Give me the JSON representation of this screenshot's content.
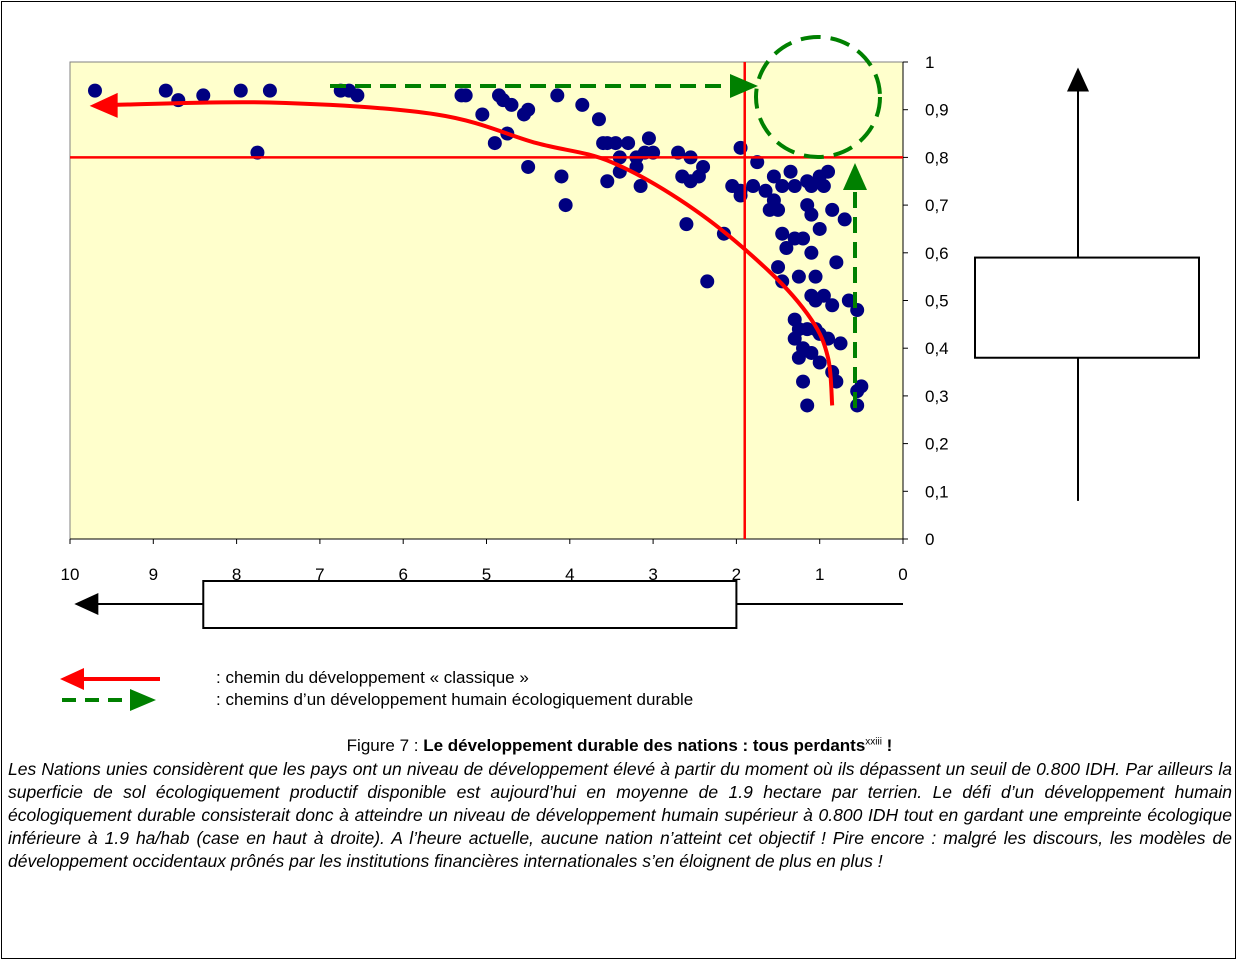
{
  "chart_data": {
    "type": "scatter",
    "x_ticks": [
      "10",
      "9",
      "8",
      "7",
      "6",
      "5",
      "4",
      "3",
      "2",
      "1",
      "0"
    ],
    "y_ticks": [
      "0",
      "0,1",
      "0,2",
      "0,3",
      "0,4",
      "0,5",
      "0,6",
      "0,7",
      "0,8",
      "0,9",
      "1"
    ],
    "xlim": [
      10,
      0
    ],
    "ylim": [
      0,
      1
    ],
    "x_reversed": true,
    "threshold_x": 1.9,
    "threshold_y": 0.8,
    "colors": {
      "plot_bg": "#ffffcc",
      "points": "#000080",
      "classic_path": "#ff0000",
      "sustainable_path": "#008000",
      "threshold": "#ff0000"
    },
    "points": [
      [
        9.7,
        0.94
      ],
      [
        8.85,
        0.94
      ],
      [
        8.7,
        0.92
      ],
      [
        8.4,
        0.93
      ],
      [
        7.95,
        0.94
      ],
      [
        7.6,
        0.94
      ],
      [
        7.75,
        0.81
      ],
      [
        6.75,
        0.94
      ],
      [
        6.55,
        0.93
      ],
      [
        6.65,
        0.94
      ],
      [
        5.3,
        0.93
      ],
      [
        5.25,
        0.93
      ],
      [
        5.05,
        0.89
      ],
      [
        4.85,
        0.93
      ],
      [
        4.8,
        0.92
      ],
      [
        4.7,
        0.91
      ],
      [
        4.55,
        0.89
      ],
      [
        4.5,
        0.9
      ],
      [
        4.75,
        0.85
      ],
      [
        4.9,
        0.83
      ],
      [
        4.5,
        0.78
      ],
      [
        4.15,
        0.93
      ],
      [
        3.85,
        0.91
      ],
      [
        3.65,
        0.88
      ],
      [
        3.55,
        0.83
      ],
      [
        3.45,
        0.83
      ],
      [
        3.6,
        0.83
      ],
      [
        3.4,
        0.8
      ],
      [
        3.3,
        0.83
      ],
      [
        3.2,
        0.8
      ],
      [
        3.1,
        0.81
      ],
      [
        3.05,
        0.84
      ],
      [
        3.0,
        0.81
      ],
      [
        3.4,
        0.77
      ],
      [
        3.2,
        0.78
      ],
      [
        3.55,
        0.75
      ],
      [
        3.15,
        0.74
      ],
      [
        4.1,
        0.76
      ],
      [
        4.05,
        0.7
      ],
      [
        2.7,
        0.81
      ],
      [
        2.55,
        0.8
      ],
      [
        2.65,
        0.76
      ],
      [
        2.55,
        0.75
      ],
      [
        2.4,
        0.78
      ],
      [
        2.45,
        0.76
      ],
      [
        2.6,
        0.66
      ],
      [
        2.35,
        0.54
      ],
      [
        2.15,
        0.64
      ],
      [
        1.95,
        0.82
      ],
      [
        2.05,
        0.74
      ],
      [
        1.95,
        0.73
      ],
      [
        1.95,
        0.72
      ],
      [
        1.8,
        0.74
      ],
      [
        1.75,
        0.79
      ],
      [
        1.65,
        0.73
      ],
      [
        1.55,
        0.76
      ],
      [
        1.55,
        0.71
      ],
      [
        1.45,
        0.74
      ],
      [
        1.6,
        0.69
      ],
      [
        1.35,
        0.77
      ],
      [
        1.3,
        0.74
      ],
      [
        1.5,
        0.69
      ],
      [
        1.15,
        0.75
      ],
      [
        1.1,
        0.74
      ],
      [
        0.95,
        0.74
      ],
      [
        1.0,
        0.76
      ],
      [
        0.9,
        0.77
      ],
      [
        1.15,
        0.7
      ],
      [
        1.1,
        0.68
      ],
      [
        1.0,
        0.65
      ],
      [
        0.85,
        0.69
      ],
      [
        0.7,
        0.67
      ],
      [
        1.45,
        0.64
      ],
      [
        1.4,
        0.61
      ],
      [
        1.3,
        0.63
      ],
      [
        1.2,
        0.63
      ],
      [
        1.1,
        0.6
      ],
      [
        1.5,
        0.57
      ],
      [
        1.45,
        0.54
      ],
      [
        1.25,
        0.55
      ],
      [
        1.05,
        0.55
      ],
      [
        0.8,
        0.58
      ],
      [
        1.1,
        0.51
      ],
      [
        1.05,
        0.5
      ],
      [
        0.95,
        0.51
      ],
      [
        0.85,
        0.49
      ],
      [
        0.65,
        0.5
      ],
      [
        1.3,
        0.46
      ],
      [
        1.25,
        0.44
      ],
      [
        1.3,
        0.42
      ],
      [
        1.15,
        0.44
      ],
      [
        1.05,
        0.44
      ],
      [
        1.0,
        0.43
      ],
      [
        0.9,
        0.42
      ],
      [
        0.75,
        0.41
      ],
      [
        1.2,
        0.4
      ],
      [
        1.1,
        0.39
      ],
      [
        1.25,
        0.38
      ],
      [
        1.0,
        0.37
      ],
      [
        0.85,
        0.35
      ],
      [
        0.55,
        0.48
      ],
      [
        0.5,
        0.32
      ],
      [
        0.8,
        0.33
      ],
      [
        1.2,
        0.33
      ],
      [
        1.15,
        0.28
      ],
      [
        0.55,
        0.28
      ],
      [
        0.55,
        0.31
      ]
    ],
    "classic_path": [
      [
        9.5,
        0.91
      ],
      [
        7.6,
        0.915
      ],
      [
        5.6,
        0.89
      ],
      [
        4.4,
        0.83
      ],
      [
        3.5,
        0.79
      ],
      [
        2.5,
        0.69
      ],
      [
        1.6,
        0.56
      ],
      [
        1.1,
        0.46
      ],
      [
        0.9,
        0.38
      ],
      [
        0.85,
        0.28
      ]
    ],
    "boxplot_y": {
      "whisker_low": 0.08,
      "q1": 0.38,
      "q3": 0.59,
      "whisker_high": 0.98
    },
    "boxplot_x": {
      "whisker_low": 0,
      "q1": 2.0,
      "q3": 8.4,
      "whisker_high": 9.9
    }
  },
  "legend": {
    "classic": ": chemin du développement « classique »",
    "sustainable": ": chemins d’un développement humain écologiquement durable"
  },
  "figure": {
    "prefix": "Figure 7 : ",
    "title": "Le développement durable des nations : tous perdants",
    "superscript": "xxiii",
    "suffix": " !"
  },
  "caption": "Les Nations unies considèrent que les pays ont un niveau de développement élevé à partir du moment où ils dépassent un seuil de 0.800 IDH. Par ailleurs la superficie de sol écologiquement productif disponible est aujourd’hui en moyenne de 1.9 hectare par terrien. Le défi d’un développement humain écologiquement durable consisterait donc à atteindre un niveau de développement humain supérieur à 0.800 IDH tout en gardant une empreinte écologique inférieure à 1.9 ha/hab (case en haut à droite). A l’heure actuelle, aucune nation n’atteint cet objectif ! Pire encore : malgré les discours, les modèles de développement occidentaux prônés par les institutions financières internationales s’en éloignent de plus en plus !"
}
